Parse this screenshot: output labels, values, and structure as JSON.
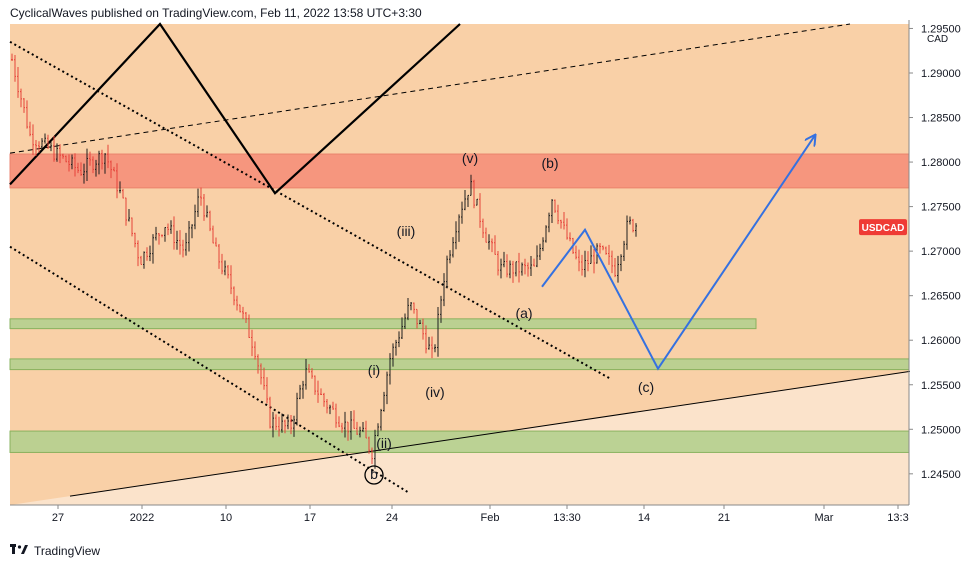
{
  "header": {
    "attribution": "CyclicalWaves published on TradingView.com, Feb 11, 2022 13:58 UTC+3:30"
  },
  "footer": {
    "brand": "TradingView",
    "logo_icon": "tradingview-logo-icon"
  },
  "chart_data": {
    "type": "candlestick",
    "symbol": "USDCAD",
    "currency": "CAD",
    "price_label": "USDCAD",
    "y_ticks": [
      "1.29500",
      "1.29000",
      "1.28500",
      "1.28000",
      "1.27500",
      "1.27000",
      "1.26500",
      "1.26000",
      "1.25500",
      "1.25000",
      "1.24500"
    ],
    "ylim": [
      1.2415,
      1.2955
    ],
    "x_ticks": [
      "27",
      "2022",
      "10",
      "17",
      "24",
      "Feb",
      "13:30",
      "14",
      "21",
      "Mar",
      "13:3"
    ],
    "colors": {
      "background_upper": "#f9d0a7",
      "background_lower": "#fbe3cb",
      "resistance_zone": "#f6907a",
      "support_zone": "#b5d18f",
      "up_candle": "#1e1e1e",
      "down_candle": "#e5433a",
      "projection": "#3571e0",
      "price_badge": "#ef3b35"
    },
    "zones": [
      {
        "name": "resistance",
        "from": 1.2771,
        "to": 1.2809
      },
      {
        "name": "support-1",
        "from": 1.2613,
        "to": 1.2624
      },
      {
        "name": "support-2",
        "from": 1.2567,
        "to": 1.2579
      },
      {
        "name": "support-3",
        "from": 1.2474,
        "to": 1.2498
      }
    ],
    "wave_labels": [
      "(v)",
      "(b)",
      "(iii)",
      "(a)",
      "(i)",
      "(iv)",
      "(ii)",
      "(c)",
      "b"
    ],
    "trend_lines": [
      {
        "style": "dotted",
        "points": [
          [
            0,
            1.2935
          ],
          [
            600,
            1.2557
          ]
        ]
      },
      {
        "style": "dotted",
        "points": [
          [
            0,
            1.2705
          ],
          [
            400,
            1.2428
          ]
        ]
      },
      {
        "style": "solid",
        "points": [
          [
            60,
            1.2425
          ],
          [
            900,
            1.2565
          ]
        ]
      },
      {
        "style": "dashed",
        "points": [
          [
            0,
            1.281
          ],
          [
            840,
            1.2955
          ]
        ]
      },
      {
        "style": "zigzag",
        "points": [
          [
            0,
            1.2775
          ],
          [
            150,
            1.2955
          ],
          [
            265,
            1.2765
          ],
          [
            450,
            1.2955
          ]
        ]
      }
    ],
    "projection": [
      [
        532,
        1.266
      ],
      [
        575,
        1.2724
      ],
      [
        648,
        1.2568
      ],
      [
        805,
        1.283
      ]
    ]
  }
}
